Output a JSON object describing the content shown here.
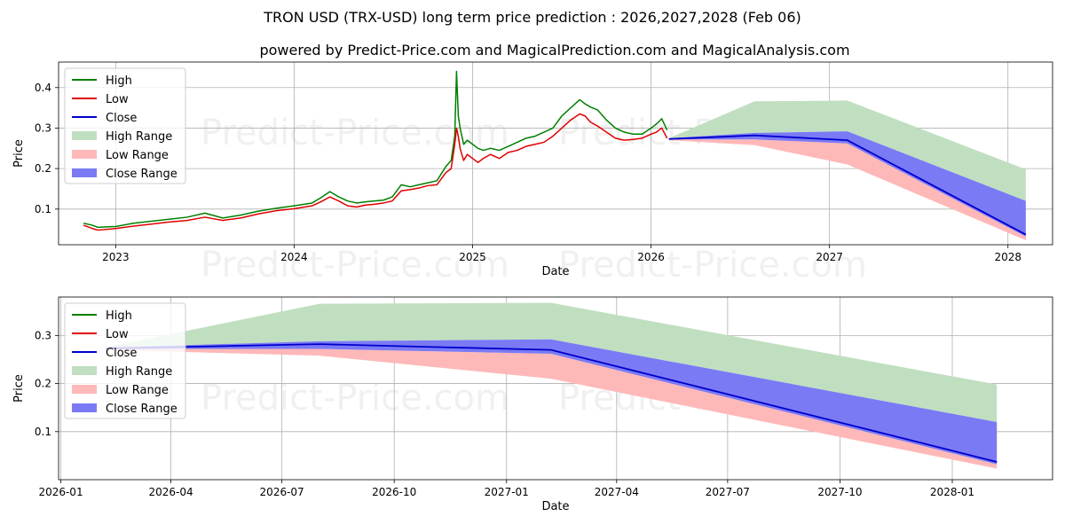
{
  "title": "TRON USD (TRX-USD) long term price prediction : 2026,2027,2028 (Feb 06)",
  "subtitle": "powered by Predict-Price.com and MagicalPrediction.com and MagicalAnalysis.com",
  "watermark": "Predict-Price.com",
  "colors": {
    "high": "#008000",
    "low": "#e00000",
    "close": "#0000cc",
    "high_range": "#c0dfc0",
    "low_range": "#ffb8b8",
    "close_range": "#7a7af5"
  },
  "chart_data": [
    {
      "id": "top",
      "type": "line",
      "title": "TRON USD (TRX-USD) long term price prediction : 2026,2027,2028 (Feb 06)",
      "xlabel": "Date",
      "ylabel": "Price",
      "xlim": [
        2022.68,
        2028.25
      ],
      "ylim": [
        0.012,
        0.463
      ],
      "xticks": [
        {
          "v": 2023.0,
          "label": "2023"
        },
        {
          "v": 2024.0,
          "label": "2024"
        },
        {
          "v": 2025.0,
          "label": "2025"
        },
        {
          "v": 2026.0,
          "label": "2026"
        },
        {
          "v": 2027.0,
          "label": "2027"
        },
        {
          "v": 2028.0,
          "label": "2028"
        }
      ],
      "yticks": [
        {
          "v": 0.1,
          "label": "0.1"
        },
        {
          "v": 0.2,
          "label": "0.2"
        },
        {
          "v": 0.3,
          "label": "0.3"
        },
        {
          "v": 0.4,
          "label": "0.4"
        }
      ],
      "grid": true,
      "legend_position": "top-left",
      "legend": [
        "High",
        "Low",
        "Close",
        "High Range",
        "Low Range",
        "Close Range"
      ],
      "history": {
        "x": [
          2022.82,
          2022.87,
          2022.9,
          2023.0,
          2023.1,
          2023.2,
          2023.3,
          2023.4,
          2023.5,
          2023.6,
          2023.7,
          2023.8,
          2023.9,
          2024.0,
          2024.1,
          2024.15,
          2024.2,
          2024.25,
          2024.3,
          2024.35,
          2024.4,
          2024.45,
          2024.5,
          2024.55,
          2024.6,
          2024.65,
          2024.7,
          2024.75,
          2024.8,
          2024.85,
          2024.88,
          2024.9,
          2024.91,
          2024.92,
          2024.93,
          2024.95,
          2024.97,
          2025.0,
          2025.03,
          2025.06,
          2025.1,
          2025.15,
          2025.2,
          2025.25,
          2025.3,
          2025.35,
          2025.4,
          2025.45,
          2025.5,
          2025.55,
          2025.6,
          2025.63,
          2025.66,
          2025.7,
          2025.75,
          2025.8,
          2025.85,
          2025.9,
          2025.95,
          2026.0,
          2026.03,
          2026.06,
          2026.09
        ],
        "high": [
          0.065,
          0.06,
          0.055,
          0.057,
          0.065,
          0.07,
          0.075,
          0.08,
          0.09,
          0.078,
          0.085,
          0.095,
          0.102,
          0.108,
          0.115,
          0.128,
          0.143,
          0.13,
          0.12,
          0.115,
          0.118,
          0.12,
          0.122,
          0.13,
          0.16,
          0.155,
          0.16,
          0.165,
          0.17,
          0.205,
          0.22,
          0.28,
          0.44,
          0.33,
          0.3,
          0.26,
          0.27,
          0.26,
          0.25,
          0.245,
          0.25,
          0.245,
          0.255,
          0.265,
          0.275,
          0.28,
          0.29,
          0.3,
          0.33,
          0.35,
          0.37,
          0.36,
          0.352,
          0.345,
          0.32,
          0.3,
          0.29,
          0.285,
          0.285,
          0.3,
          0.31,
          0.323,
          0.295
        ],
        "low": [
          0.06,
          0.052,
          0.048,
          0.052,
          0.058,
          0.063,
          0.068,
          0.072,
          0.08,
          0.072,
          0.078,
          0.088,
          0.096,
          0.101,
          0.108,
          0.118,
          0.13,
          0.12,
          0.108,
          0.105,
          0.11,
          0.112,
          0.115,
          0.12,
          0.145,
          0.148,
          0.152,
          0.158,
          0.16,
          0.19,
          0.2,
          0.26,
          0.3,
          0.28,
          0.25,
          0.22,
          0.235,
          0.225,
          0.215,
          0.225,
          0.235,
          0.225,
          0.24,
          0.245,
          0.255,
          0.26,
          0.265,
          0.28,
          0.3,
          0.32,
          0.335,
          0.33,
          0.315,
          0.305,
          0.29,
          0.275,
          0.27,
          0.272,
          0.275,
          0.285,
          0.29,
          0.3,
          0.275
        ]
      },
      "forecast": {
        "x": [
          2026.1,
          2026.58,
          2027.1,
          2028.1
        ],
        "close": [
          0.273,
          0.282,
          0.27,
          0.037
        ],
        "high_range_upper": [
          0.275,
          0.366,
          0.368,
          0.198
        ],
        "close_range_upper": [
          0.275,
          0.288,
          0.292,
          0.12
        ],
        "close_range_lower": [
          0.272,
          0.272,
          0.262,
          0.032
        ],
        "low_range_lower": [
          0.27,
          0.258,
          0.21,
          0.023
        ]
      }
    },
    {
      "id": "bottom",
      "type": "line",
      "xlabel": "Date",
      "ylabel": "Price",
      "xlim": [
        2025.995,
        2028.225
      ],
      "ylim": [
        0.0,
        0.38
      ],
      "xticks": [
        {
          "v": 2026.0,
          "label": "2026-01"
        },
        {
          "v": 2026.247,
          "label": "2026-04"
        },
        {
          "v": 2026.496,
          "label": "2026-07"
        },
        {
          "v": 2026.748,
          "label": "2026-10"
        },
        {
          "v": 2027.0,
          "label": "2027-01"
        },
        {
          "v": 2027.247,
          "label": "2027-04"
        },
        {
          "v": 2027.496,
          "label": "2027-07"
        },
        {
          "v": 2027.748,
          "label": "2027-10"
        },
        {
          "v": 2028.0,
          "label": "2028-01"
        }
      ],
      "yticks": [
        {
          "v": 0.1,
          "label": "0.1"
        },
        {
          "v": 0.2,
          "label": "0.2"
        },
        {
          "v": 0.3,
          "label": "0.3"
        }
      ],
      "grid": true,
      "legend_position": "top-left",
      "legend": [
        "High",
        "Low",
        "Close",
        "High Range",
        "Low Range",
        "Close Range"
      ],
      "forecast": {
        "x": [
          2026.1,
          2026.58,
          2027.1,
          2028.1
        ],
        "close": [
          0.273,
          0.282,
          0.27,
          0.037
        ],
        "high_range_upper": [
          0.275,
          0.366,
          0.368,
          0.198
        ],
        "close_range_upper": [
          0.275,
          0.288,
          0.292,
          0.12
        ],
        "close_range_lower": [
          0.272,
          0.272,
          0.262,
          0.032
        ],
        "low_range_lower": [
          0.27,
          0.258,
          0.21,
          0.023
        ]
      }
    }
  ]
}
